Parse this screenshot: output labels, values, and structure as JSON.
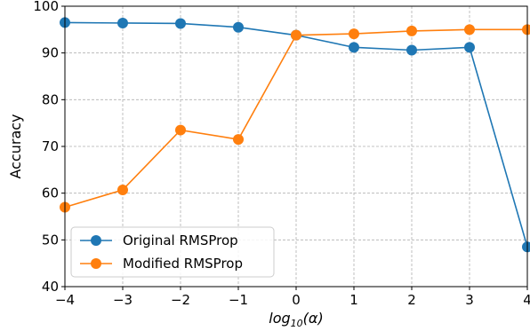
{
  "chart_data": {
    "type": "line",
    "x": [
      -4,
      -3,
      -2,
      -1,
      0,
      1,
      2,
      3,
      4
    ],
    "x_tick_labels": [
      "−4",
      "−3",
      "−2",
      "−1",
      "0",
      "1",
      "2",
      "3",
      "4"
    ],
    "y_ticks": [
      40,
      50,
      60,
      70,
      80,
      90,
      100
    ],
    "y_tick_labels": [
      "40",
      "50",
      "60",
      "70",
      "80",
      "90",
      "100"
    ],
    "xlim": [
      -4,
      4
    ],
    "ylim": [
      40,
      100
    ],
    "xlabel_prefix": "log",
    "xlabel_subscript": "10",
    "xlabel_suffix": "(α)",
    "ylabel": "Accuracy",
    "grid": true,
    "legend_position": "bottom-left",
    "series": [
      {
        "name": "Original RMSProp",
        "color": "#1f77b4",
        "values": [
          96.5,
          96.4,
          96.3,
          95.5,
          93.8,
          91.2,
          90.6,
          91.2,
          48.5
        ]
      },
      {
        "name": "Modified RMSProp",
        "color": "#ff7f0e",
        "values": [
          57.0,
          60.7,
          73.5,
          71.5,
          93.8,
          94.1,
          94.7,
          95.0,
          95.0
        ]
      }
    ]
  }
}
